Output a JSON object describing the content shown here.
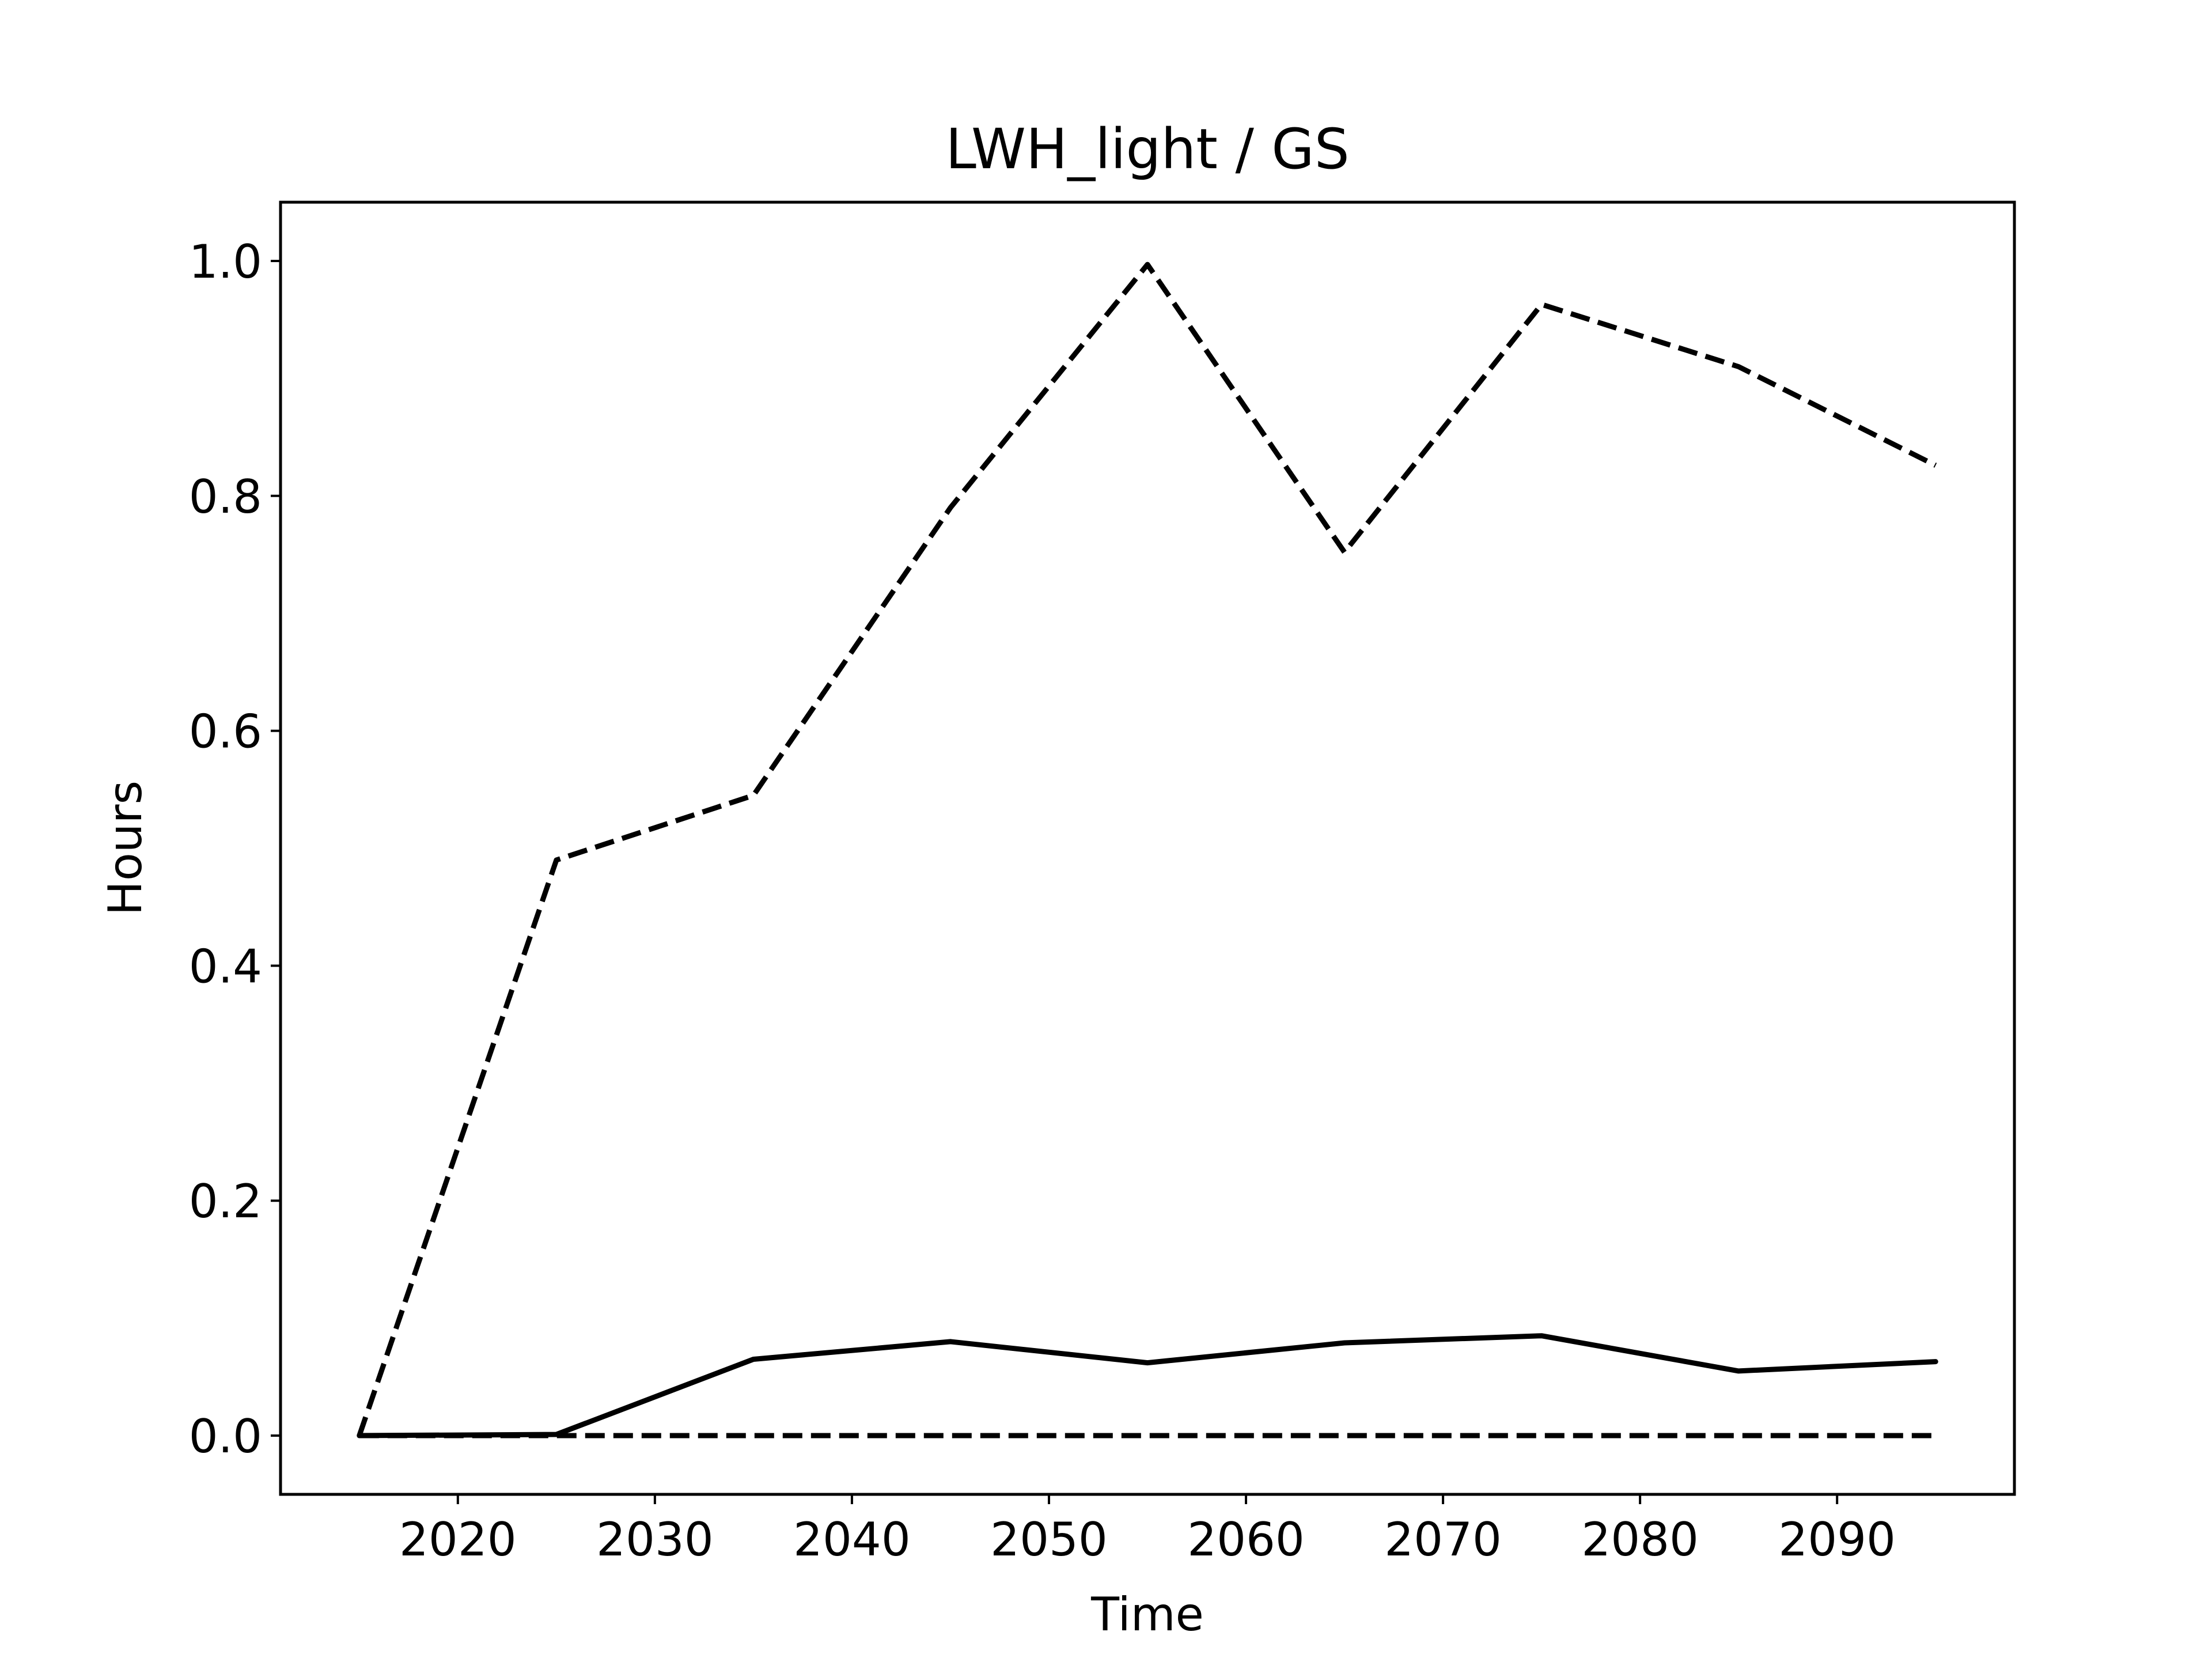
{
  "chart_data": {
    "type": "line",
    "title": "LWH_light / GS",
    "xlabel": "Time",
    "ylabel": "Hours",
    "x": [
      2015,
      2025,
      2035,
      2045,
      2055,
      2065,
      2075,
      2085,
      2095
    ],
    "xlim": [
      2011,
      2099
    ],
    "ylim": [
      -0.05,
      1.05
    ],
    "xticks": [
      2020,
      2030,
      2040,
      2050,
      2060,
      2070,
      2080,
      2090
    ],
    "yticks": [
      0.0,
      0.2,
      0.4,
      0.6,
      0.8,
      1.0
    ],
    "ytick_labels": [
      "0.0",
      "0.2",
      "0.4",
      "0.6",
      "0.8",
      "1.0"
    ],
    "grid": false,
    "series": [
      {
        "style": "dashed",
        "color": "#000000",
        "values": [
          0.0,
          0.49,
          0.545,
          0.79,
          0.997,
          0.752,
          0.963,
          0.91,
          0.826
        ]
      },
      {
        "style": "solid",
        "color": "#000000",
        "values": [
          0.0,
          0.001,
          0.065,
          0.08,
          0.062,
          0.079,
          0.085,
          0.055,
          0.063
        ]
      },
      {
        "style": "dashed",
        "color": "#000000",
        "values": [
          0.0,
          0.0,
          0.0,
          0.0,
          0.0,
          0.0,
          0.0,
          0.0,
          0.0
        ]
      }
    ]
  }
}
